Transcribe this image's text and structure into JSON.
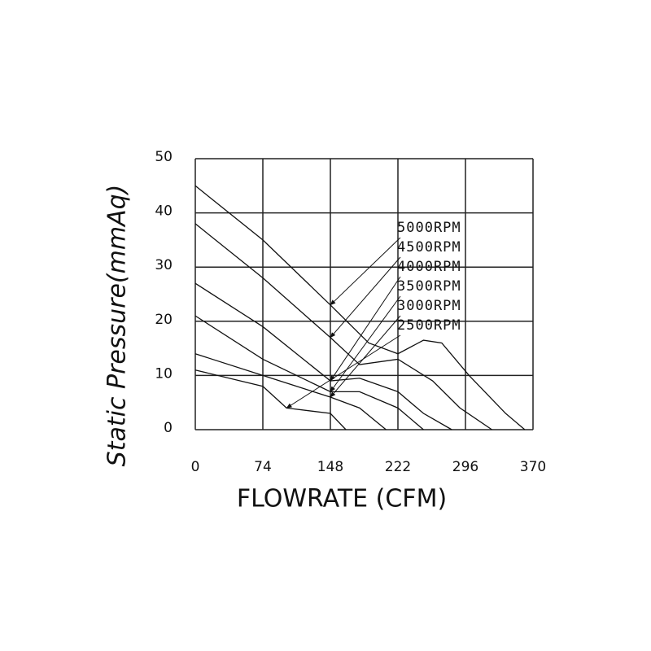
{
  "chart_data": {
    "type": "line",
    "x_label": "FLOWRATE (CFM)",
    "y_label": "Static Pressure(mmAq)",
    "xlim": [
      0,
      370
    ],
    "xticks": [
      0,
      74,
      148,
      222,
      296,
      370
    ],
    "ylim": [
      0,
      50
    ],
    "yticks": [
      0,
      10,
      20,
      30,
      40,
      50
    ],
    "grid": true,
    "series": [
      {
        "name": "5000RPM",
        "color": "#111111",
        "x": [
          0,
          74,
          148,
          190,
          222,
          250,
          270,
          300,
          340,
          361
        ],
        "values": [
          45,
          35,
          23,
          16,
          14,
          16.5,
          16,
          10,
          3,
          0
        ]
      },
      {
        "name": "4500RPM",
        "color": "#111111",
        "x": [
          0,
          74,
          148,
          180,
          222,
          260,
          290,
          325
        ],
        "values": [
          38,
          28,
          17,
          12,
          13,
          9,
          4,
          0
        ]
      },
      {
        "name": "4000RPM",
        "color": "#111111",
        "x": [
          0,
          74,
          148,
          180,
          222,
          250,
          281
        ],
        "values": [
          27,
          19,
          9,
          9.5,
          7,
          3,
          0
        ]
      },
      {
        "name": "3500RPM",
        "color": "#111111",
        "x": [
          0,
          74,
          148,
          180,
          222,
          250
        ],
        "values": [
          21,
          13,
          7,
          7,
          4,
          0
        ]
      },
      {
        "name": "3000RPM",
        "color": "#111111",
        "x": [
          0,
          74,
          148,
          180,
          209
        ],
        "values": [
          14,
          10,
          6,
          4,
          0
        ]
      },
      {
        "name": "2500RPM",
        "color": "#111111",
        "x": [
          0,
          74,
          100,
          148,
          165
        ],
        "values": [
          11,
          8,
          4,
          3,
          0
        ]
      }
    ]
  }
}
